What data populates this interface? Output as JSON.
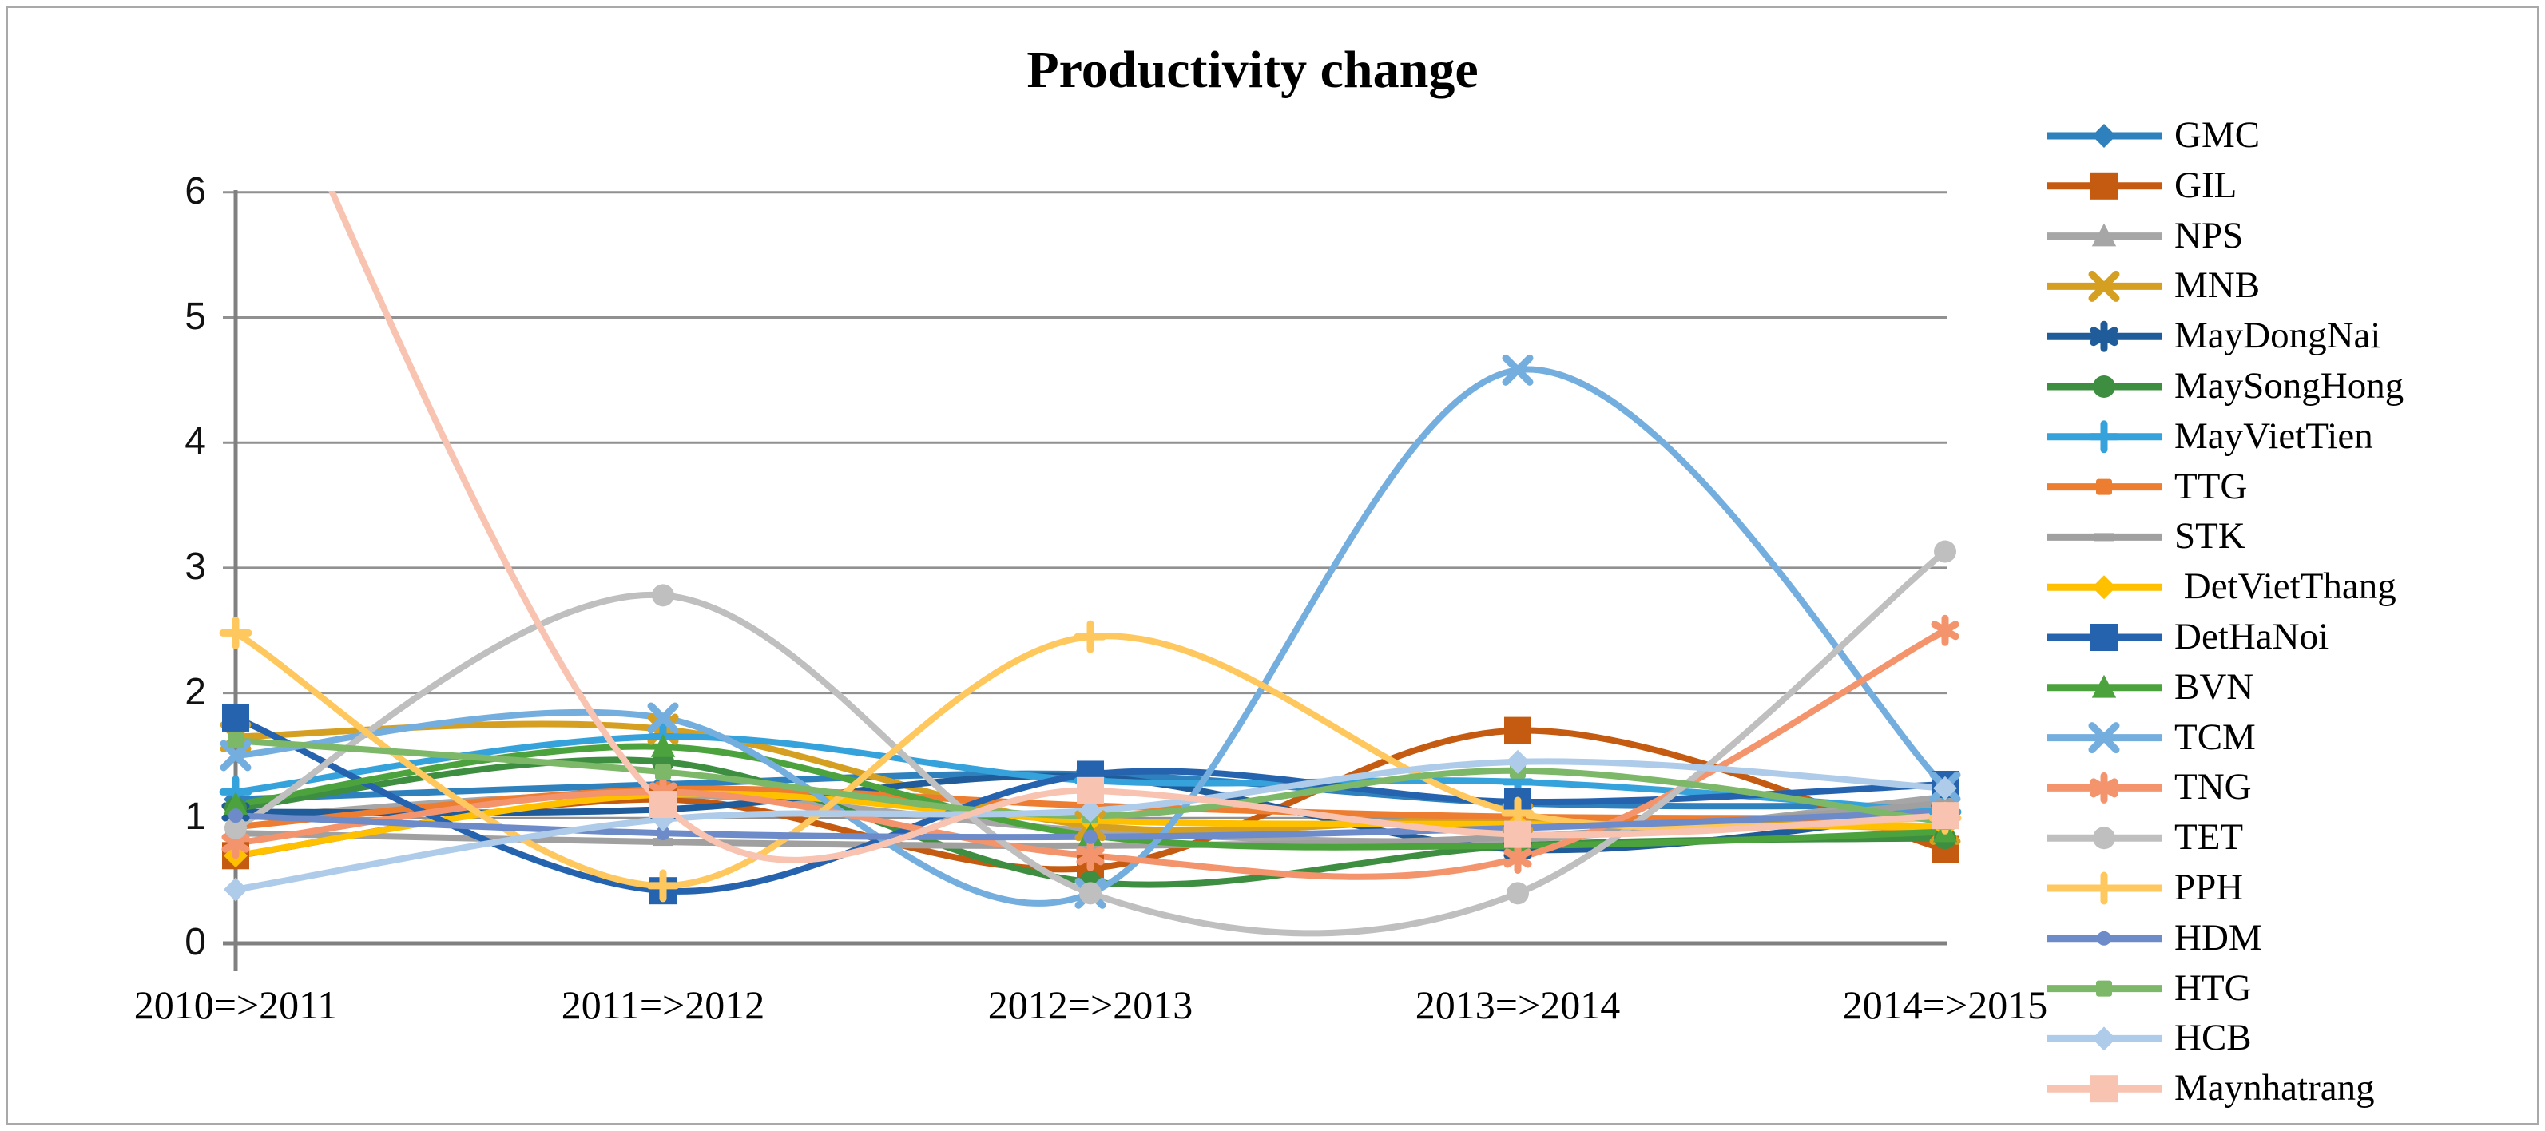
{
  "figure": {
    "title": "Productivity change"
  },
  "chart_data": {
    "type": "line",
    "title": "Productivity change",
    "smoothed": true,
    "grid": true,
    "legend_position": "right",
    "xlabel": "",
    "ylabel": "",
    "ylim": [
      0,
      6
    ],
    "y_ticks": [
      "0",
      "1",
      "2",
      "3",
      "4",
      "5",
      "6"
    ],
    "categories": [
      "2010=>2011",
      "2011=>2012",
      "2012=>2013",
      "2013=>2014",
      "2014=>2015"
    ],
    "axis_color": "#808080",
    "gridline_color": "#919191",
    "series": [
      {
        "name": "GMC",
        "color": "#2E81BD",
        "marker": "diamond",
        "values": [
          1.15,
          1.27,
          1.35,
          1.12,
          1.1
        ]
      },
      {
        "name": "GIL",
        "color": "#C55A11",
        "marker": "square",
        "values": [
          0.7,
          1.15,
          0.6,
          1.7,
          0.75
        ]
      },
      {
        "name": "NPS",
        "color": "#A6A6A6",
        "marker": "triangle",
        "values": [
          1.0,
          1.19,
          0.9,
          0.83,
          1.17
        ]
      },
      {
        "name": "MNB",
        "color": "#D5A021",
        "marker": "x",
        "values": [
          1.65,
          1.71,
          0.94,
          1.0,
          0.91
        ]
      },
      {
        "name": "MayDongNai",
        "color": "#1F5C99",
        "marker": "asterisk",
        "values": [
          1.05,
          1.07,
          1.33,
          0.75,
          1.05
        ]
      },
      {
        "name": "MaySongHong",
        "color": "#3E8E41",
        "marker": "circle",
        "values": [
          1.08,
          1.45,
          0.49,
          0.78,
          0.84
        ]
      },
      {
        "name": "MayVietTien",
        "color": "#36A2DB",
        "marker": "plus",
        "values": [
          1.21,
          1.65,
          1.3,
          1.29,
          1.05
        ]
      },
      {
        "name": "TTG",
        "color": "#ED7D31",
        "marker": "square-s",
        "values": [
          0.93,
          1.23,
          1.1,
          1.01,
          1.0
        ]
      },
      {
        "name": "STK",
        "color": "#A0A0A0",
        "marker": "dash",
        "values": [
          0.88,
          0.81,
          0.78,
          0.85,
          1.12
        ]
      },
      {
        "name": " DetVietThang",
        "color": "#FFC000",
        "marker": "diamond",
        "values": [
          0.7,
          1.19,
          0.98,
          0.95,
          0.93
        ]
      },
      {
        "name": "DetHaNoi",
        "color": "#2563AE",
        "marker": "square",
        "values": [
          1.8,
          0.42,
          1.35,
          1.13,
          1.27
        ]
      },
      {
        "name": "BVN",
        "color": "#4CA33E",
        "marker": "triangle",
        "values": [
          1.11,
          1.57,
          0.86,
          0.78,
          0.89
        ]
      },
      {
        "name": "TCM",
        "color": "#74AEDE",
        "marker": "x",
        "values": [
          1.5,
          1.8,
          0.4,
          4.58,
          1.25
        ]
      },
      {
        "name": "TNG",
        "color": "#F4946C",
        "marker": "asterisk",
        "values": [
          0.8,
          1.21,
          0.7,
          0.68,
          2.5
        ]
      },
      {
        "name": "TET",
        "color": "#BFBFBF",
        "marker": "circle",
        "values": [
          0.92,
          2.78,
          0.4,
          0.4,
          3.13
        ]
      },
      {
        "name": "PPH",
        "color": "#FFC85E",
        "marker": "plus",
        "values": [
          2.48,
          0.46,
          2.45,
          1.04,
          1.0
        ]
      },
      {
        "name": "HDM",
        "color": "#6D8BC9",
        "marker": "circle-s",
        "values": [
          1.02,
          0.88,
          0.85,
          0.92,
          1.05
        ]
      },
      {
        "name": "HTG",
        "color": "#7CB868",
        "marker": "square-s",
        "values": [
          1.62,
          1.37,
          1.02,
          1.38,
          0.97
        ]
      },
      {
        "name": "HCB",
        "color": "#AECBEA",
        "marker": "diamond",
        "values": [
          0.43,
          0.99,
          1.06,
          1.45,
          1.24
        ]
      },
      {
        "name": "Maynhatrang",
        "color": "#F8C3B0",
        "marker": "square",
        "values": [
          7.7,
          1.11,
          1.22,
          0.87,
          1.02
        ]
      }
    ]
  }
}
